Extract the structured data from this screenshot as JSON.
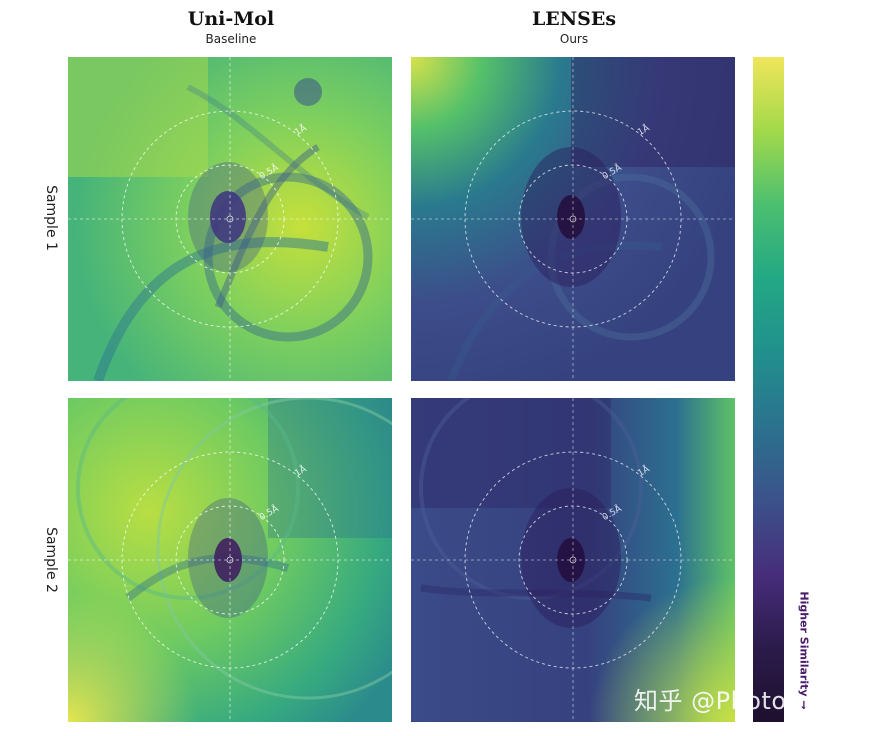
{
  "columns": [
    {
      "title": "Uni-Mol",
      "subtitle": "Baseline"
    },
    {
      "title": "LENSEs",
      "subtitle": "Ours"
    }
  ],
  "rows": [
    {
      "label": "Sample 1"
    },
    {
      "label": "Sample 2"
    }
  ],
  "rings": [
    {
      "label": "1Å"
    },
    {
      "label": "0.5Å"
    }
  ],
  "colorbar": {
    "label": "Higher Similarity",
    "colormap": "viridis",
    "colors_top_to_bottom": [
      "#f0e55a",
      "#a2d94a",
      "#4cbf70",
      "#22a884",
      "#21908d",
      "#2b728e",
      "#3b528b",
      "#472d7b",
      "#2b1b4a",
      "#1e0f30"
    ]
  },
  "watermark": "知乎 @Photon.Yan",
  "chart_data": {
    "type": "heatmap",
    "colormap": "viridis",
    "direction": "darker = higher similarity",
    "grid": "2x2",
    "panels": [
      {
        "row": "Sample 1",
        "column": "Uni-Mol",
        "base": "#b8dd45",
        "spot": "#482a77"
      },
      {
        "row": "Sample 1",
        "column": "LENSEs",
        "base": "#3d4d8a",
        "spot": "#2a1244"
      },
      {
        "row": "Sample 2",
        "column": "Uni-Mol",
        "base": "#8fd155",
        "spot": "#402060"
      },
      {
        "row": "Sample 2",
        "column": "LENSEs",
        "base": "#3b4688",
        "spot": "#2a1244"
      }
    ]
  }
}
